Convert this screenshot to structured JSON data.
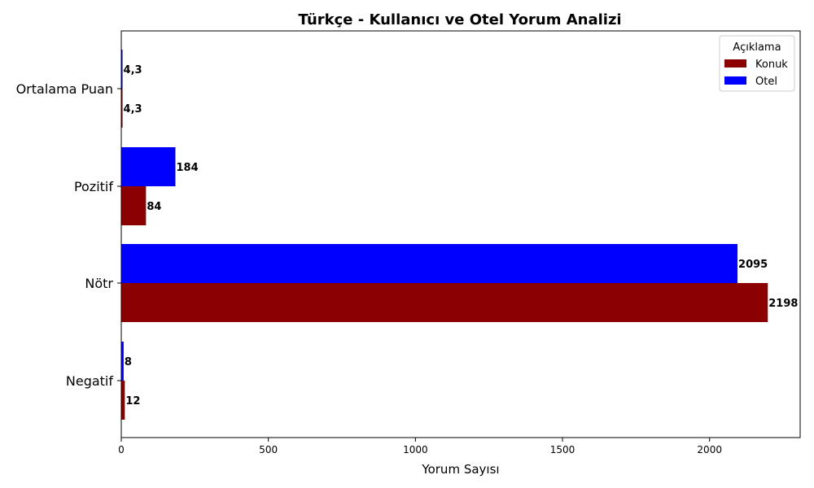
{
  "chart_data": {
    "type": "bar",
    "orientation": "horizontal",
    "title": "Türkçe - Kullanıcı ve Otel Yorum Analizi",
    "xlabel": "Yorum Sayısı",
    "ylabel": "",
    "categories": [
      "Negatif",
      "Nötr",
      "Pozitif",
      "Ortalama Puan"
    ],
    "series": [
      {
        "name": "Konuk",
        "color": "#8b0000",
        "values": [
          12,
          2198,
          84,
          4.3
        ],
        "labels": [
          "12",
          "2198",
          "84",
          "4,3"
        ]
      },
      {
        "name": "Otel",
        "color": "#0000ff",
        "values": [
          8,
          2095,
          184,
          4.3
        ],
        "labels": [
          "8",
          "2095",
          "184",
          "4,3"
        ]
      }
    ],
    "xlim": [
      0,
      2308
    ],
    "xticks": [
      0,
      500,
      1000,
      1500,
      2000
    ],
    "xtick_labels": [
      "0",
      "500",
      "1000",
      "1500",
      "2000"
    ],
    "legend": {
      "title": "Açıklama",
      "position": "top-right"
    },
    "grid": false
  }
}
